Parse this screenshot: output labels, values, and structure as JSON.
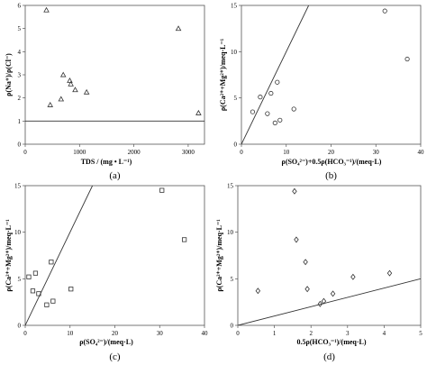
{
  "chart_data": [
    {
      "type": "scatter",
      "panel_label": "(a)",
      "xlabel": "TDS / (mg • L⁻¹)",
      "ylabel": "ρ(Na⁺)/ρ(Cl⁻)",
      "xlim": [
        0,
        3300
      ],
      "ylim": [
        0,
        6
      ],
      "xticks": [
        0,
        1000,
        2000,
        3000
      ],
      "yticks": [
        0,
        1,
        2,
        3,
        4,
        5,
        6
      ],
      "marker": "triangle",
      "reference_line": {
        "kind": "horizontal",
        "y": 1.0
      },
      "points": [
        [
          390,
          5.8
        ],
        [
          460,
          1.7
        ],
        [
          660,
          1.95
        ],
        [
          700,
          3.0
        ],
        [
          820,
          2.75
        ],
        [
          840,
          2.6
        ],
        [
          920,
          2.35
        ],
        [
          1130,
          2.25
        ],
        [
          2820,
          5.0
        ],
        [
          3190,
          1.35
        ]
      ]
    },
    {
      "type": "scatter",
      "panel_label": "(b)",
      "xlabel": "ρ(SO₄²⁻)+0.5ρ(HCO₃⁻¹)/(meq·L)",
      "ylabel": "ρ(Ca²⁺+Mg²⁺)/meq·L⁻¹",
      "xlim": [
        0,
        40
      ],
      "ylim": [
        0,
        15
      ],
      "xticks": [
        0,
        10,
        20,
        30,
        40
      ],
      "yticks": [
        0,
        5,
        10,
        15
      ],
      "marker": "circle",
      "reference_line": {
        "kind": "1:1",
        "from": [
          0,
          0
        ],
        "to": [
          15,
          15
        ]
      },
      "points": [
        [
          2.5,
          3.5
        ],
        [
          4.2,
          5.1
        ],
        [
          5.8,
          3.3
        ],
        [
          6.6,
          5.5
        ],
        [
          7.5,
          2.3
        ],
        [
          8.0,
          6.7
        ],
        [
          8.6,
          2.6
        ],
        [
          11.7,
          3.8
        ],
        [
          32.0,
          14.4
        ],
        [
          37.0,
          9.2
        ]
      ]
    },
    {
      "type": "scatter",
      "panel_label": "(c)",
      "xlabel": "ρ(SO₄²⁻)/(meq·L)",
      "ylabel": "ρ(Ca²⁺+Mg²⁺)/meq·L⁻¹",
      "xlim": [
        0,
        40
      ],
      "ylim": [
        0,
        15
      ],
      "xticks": [
        0,
        10,
        20,
        30,
        40
      ],
      "yticks": [
        0,
        5,
        10,
        15
      ],
      "marker": "square",
      "reference_line": {
        "kind": "1:1",
        "from": [
          0,
          0
        ],
        "to": [
          15,
          15
        ]
      },
      "points": [
        [
          0.8,
          5.2
        ],
        [
          1.7,
          3.7
        ],
        [
          2.3,
          5.6
        ],
        [
          3.0,
          3.4
        ],
        [
          4.8,
          2.2
        ],
        [
          5.8,
          6.8
        ],
        [
          6.2,
          2.6
        ],
        [
          10.2,
          3.9
        ],
        [
          30.5,
          14.5
        ],
        [
          35.5,
          9.2
        ]
      ]
    },
    {
      "type": "scatter",
      "panel_label": "(d)",
      "xlabel": "0.5ρ(HCO₃⁻¹)/(meq·L)",
      "ylabel": "ρ(Ca²⁺+Mg²⁺)/meq·L⁻¹",
      "xlim": [
        0,
        5
      ],
      "ylim": [
        0,
        15
      ],
      "xticks": [
        0,
        1,
        2,
        3,
        4,
        5
      ],
      "yticks": [
        0,
        5,
        10,
        15
      ],
      "marker": "diamond",
      "reference_line": {
        "kind": "1:1",
        "from": [
          0,
          0
        ],
        "to": [
          5,
          5
        ]
      },
      "points": [
        [
          0.55,
          3.7
        ],
        [
          1.55,
          14.4
        ],
        [
          1.6,
          9.2
        ],
        [
          1.85,
          6.8
        ],
        [
          1.9,
          3.9
        ],
        [
          2.25,
          2.3
        ],
        [
          2.35,
          2.6
        ],
        [
          2.6,
          3.4
        ],
        [
          3.15,
          5.2
        ],
        [
          4.15,
          5.6
        ]
      ]
    }
  ]
}
